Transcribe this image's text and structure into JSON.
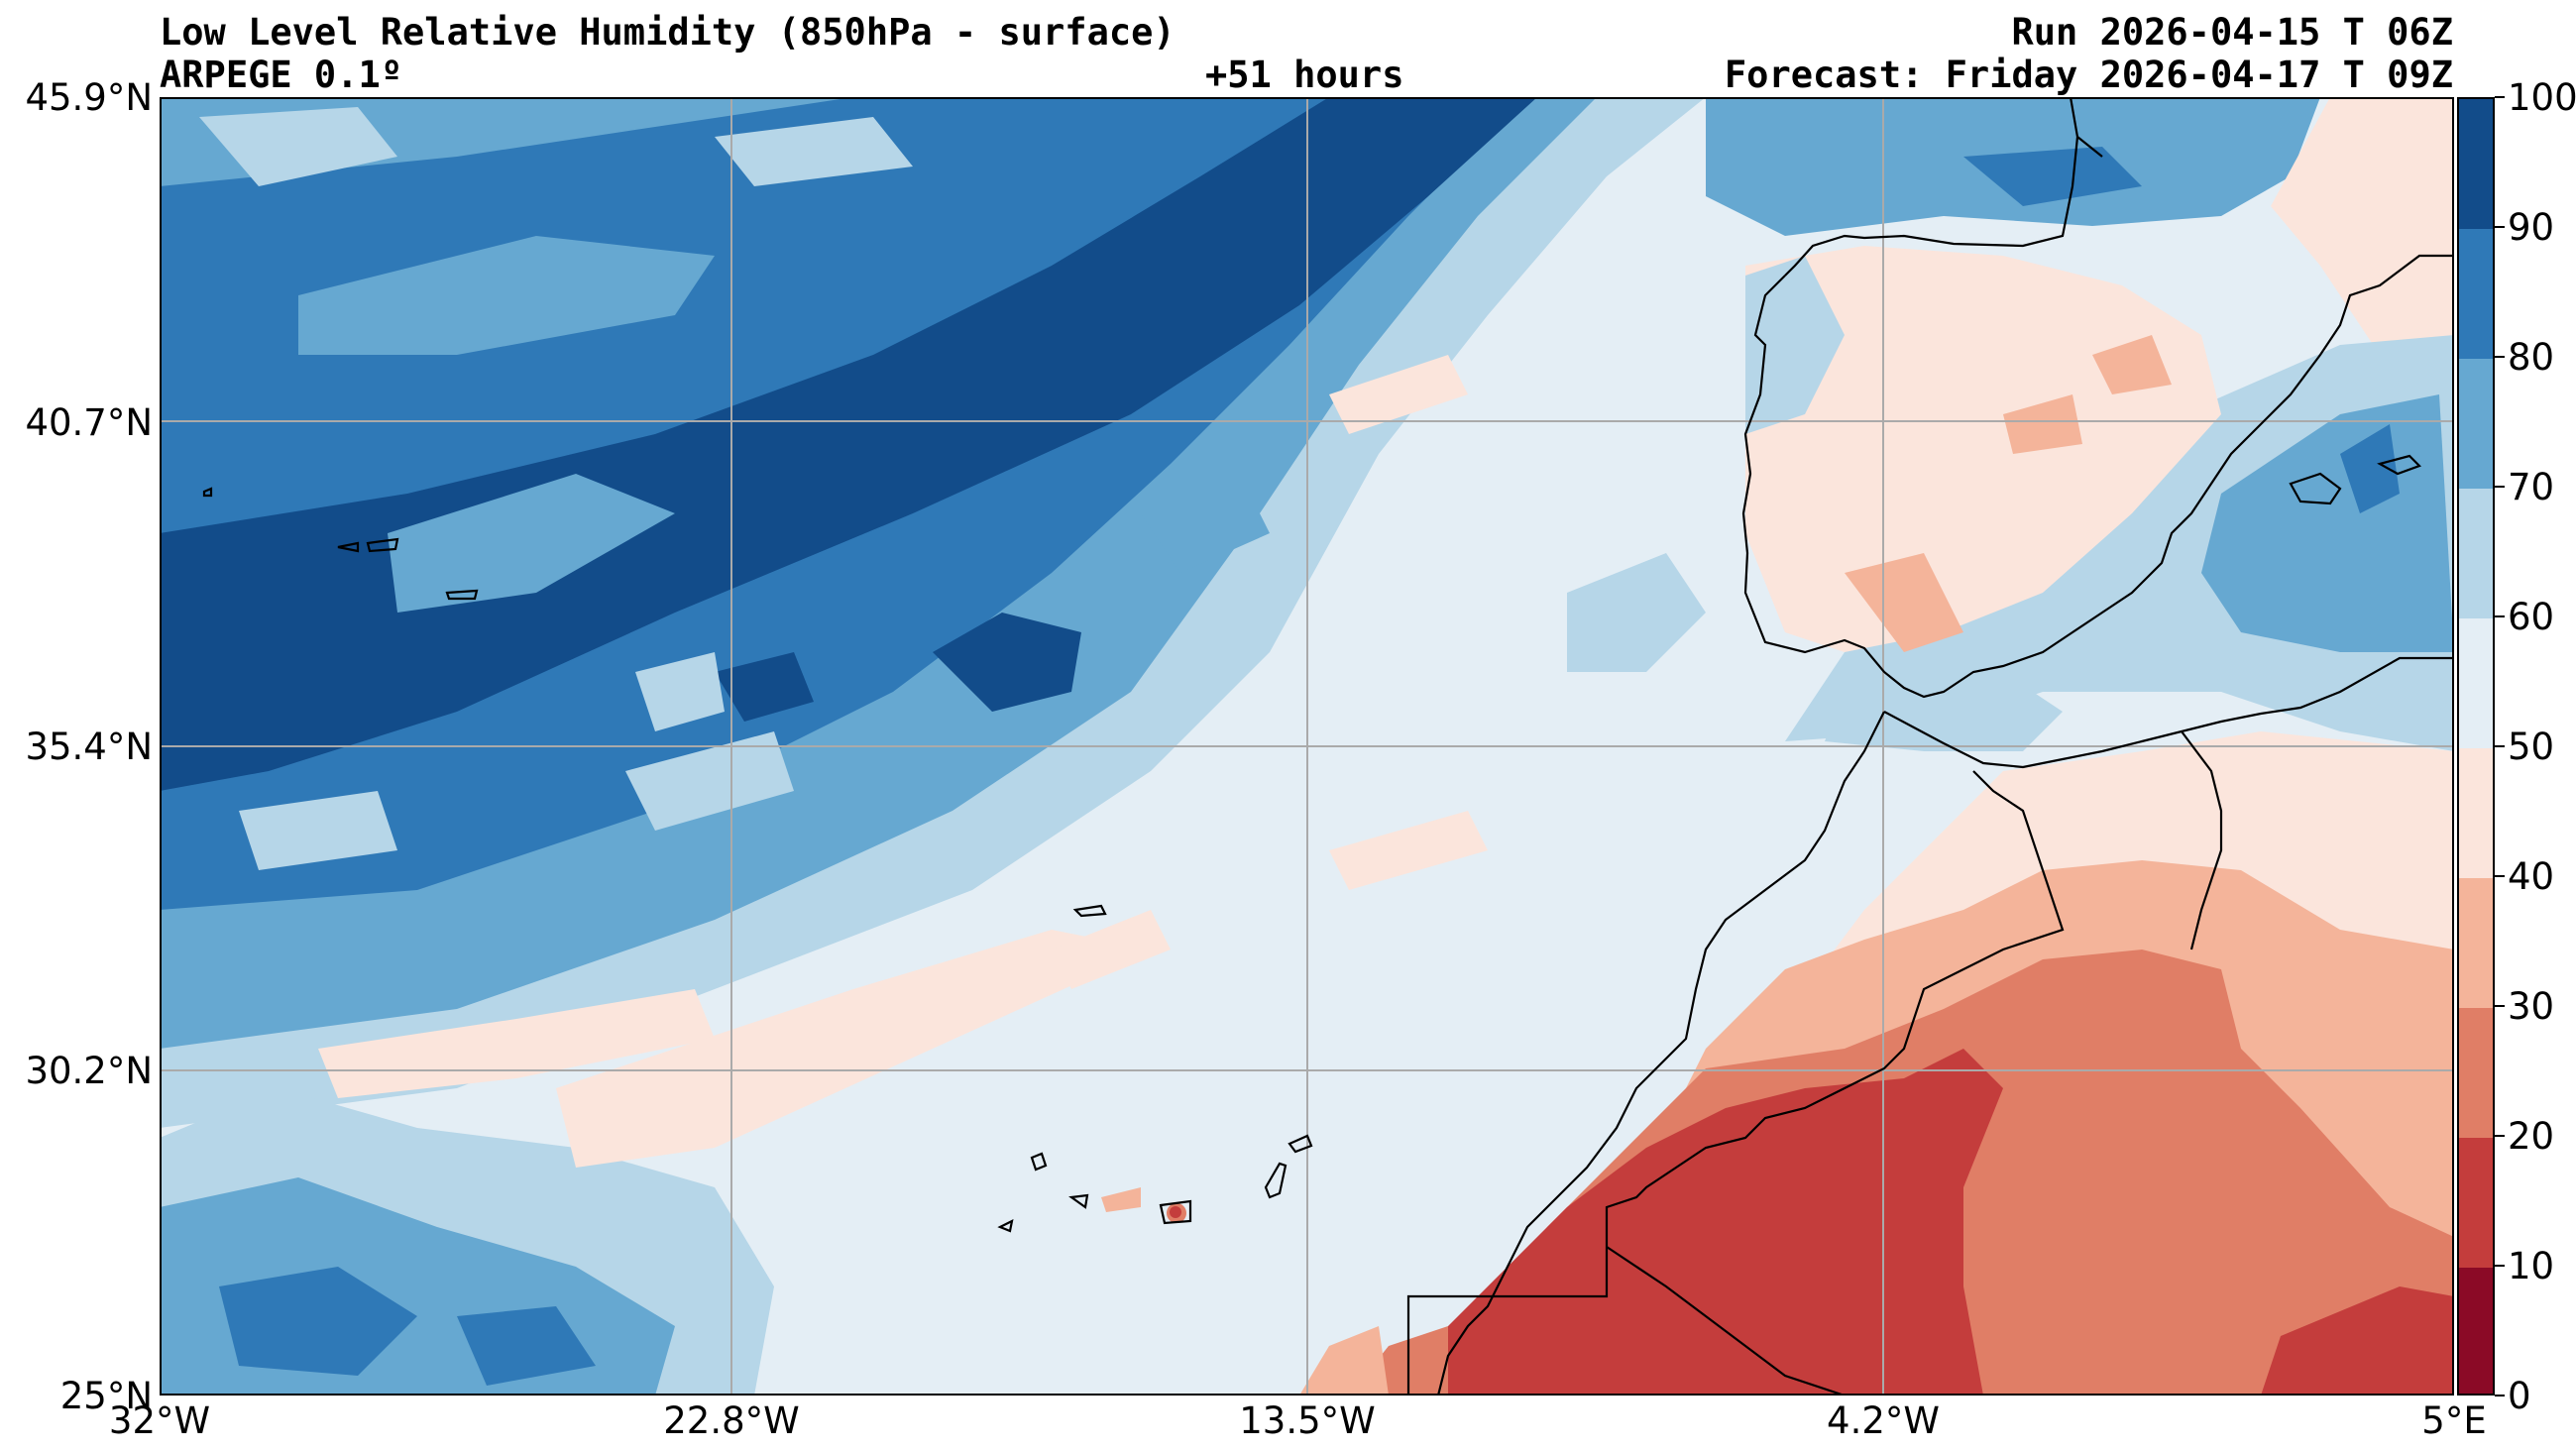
{
  "header": {
    "title": "Low Level Relative Humidity (850hPa - surface)",
    "model": "ARPEGE 0.1º",
    "lead_time": "+51 hours",
    "run": "Run 2026-04-15 T 06Z",
    "forecast": "Forecast: Friday 2026-04-17 T 09Z"
  },
  "axes": {
    "lat_ticks": [
      "45.9°N",
      "40.7°N",
      "35.4°N",
      "30.2°N",
      "25°N"
    ],
    "lon_ticks": [
      "32°W",
      "22.8°W",
      "13.5°W",
      "4.2°W",
      "5°E"
    ]
  },
  "colorbar": {
    "ticks": [
      "100",
      "90",
      "80",
      "70",
      "60",
      "50",
      "40",
      "30",
      "20",
      "10",
      "0"
    ],
    "colors": [
      "#124c8a",
      "#2f79b7",
      "#66a8d1",
      "#b6d6e8",
      "#e4eef5",
      "#fbe5dc",
      "#f4b49a",
      "#e07e66",
      "#c43d3c",
      "#8b0a26"
    ]
  },
  "palette": {
    "very_humid": "#124c8a",
    "humid": "#2f79b7",
    "moist": "#66a8d1",
    "light_moist": "#b6d6e8",
    "neutral": "#e4eef5",
    "slightly_dry": "#fbe5dc",
    "dry": "#f4b49a",
    "very_dry": "#e07e66",
    "arid": "#c43d3c",
    "extreme_arid": "#8b0a26",
    "coast": "#000000",
    "grid": "#aaaaaa"
  }
}
